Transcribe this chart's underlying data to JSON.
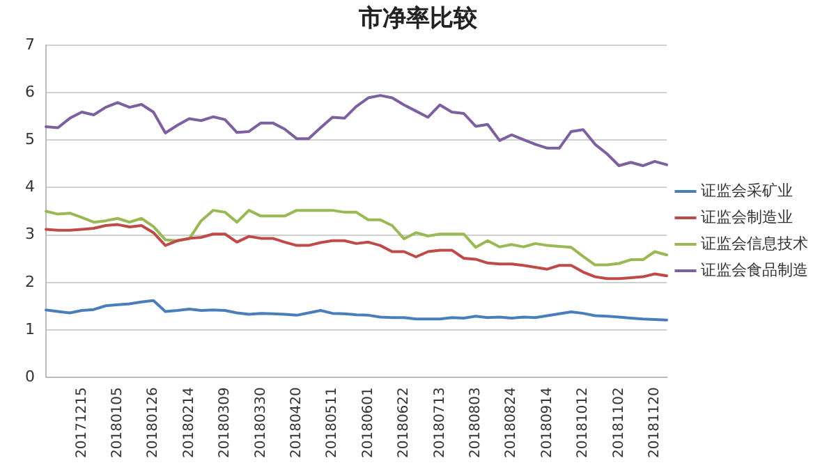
{
  "chart_data": {
    "type": "line",
    "title": "市净率比较",
    "categories": [
      null,
      null,
      null,
      "20171215",
      null,
      null,
      "20180105",
      null,
      null,
      "20180126",
      null,
      null,
      "20180214",
      null,
      null,
      "20180309",
      null,
      null,
      "20180330",
      null,
      null,
      "20180420",
      null,
      null,
      "20180511",
      null,
      null,
      "20180601",
      null,
      null,
      "20180622",
      null,
      null,
      "20180713",
      null,
      null,
      "20180803",
      null,
      null,
      "20180824",
      null,
      null,
      "20180914",
      null,
      null,
      "20181012",
      null,
      null,
      "20181102",
      null,
      null,
      "20181120",
      null
    ],
    "series": [
      {
        "name": "证监会采矿业",
        "color": "#4a7ebb",
        "values": [
          1.42,
          1.39,
          1.36,
          1.41,
          1.43,
          1.51,
          1.53,
          1.55,
          1.59,
          1.62,
          1.39,
          1.41,
          1.44,
          1.41,
          1.42,
          1.41,
          1.36,
          1.33,
          1.35,
          1.34,
          1.33,
          1.31,
          1.36,
          1.41,
          1.35,
          1.34,
          1.32,
          1.31,
          1.27,
          1.26,
          1.26,
          1.23,
          1.23,
          1.23,
          1.26,
          1.25,
          1.29,
          1.26,
          1.27,
          1.25,
          1.27,
          1.26,
          1.3,
          1.34,
          1.38,
          1.35,
          1.3,
          1.29,
          1.27,
          1.25,
          1.23,
          1.22,
          1.21
        ]
      },
      {
        "name": "证监会制造业",
        "color": "#be4b48",
        "values": [
          3.12,
          3.1,
          3.1,
          3.12,
          3.14,
          3.2,
          3.22,
          3.17,
          3.2,
          3.05,
          2.78,
          2.88,
          2.93,
          2.95,
          3.02,
          3.02,
          2.85,
          2.97,
          2.93,
          2.93,
          2.85,
          2.78,
          2.78,
          2.84,
          2.88,
          2.88,
          2.82,
          2.85,
          2.78,
          2.65,
          2.65,
          2.54,
          2.65,
          2.68,
          2.68,
          2.51,
          2.49,
          2.41,
          2.39,
          2.39,
          2.36,
          2.32,
          2.28,
          2.36,
          2.36,
          2.22,
          2.12,
          2.08,
          2.08,
          2.1,
          2.12,
          2.18,
          2.14
        ]
      },
      {
        "name": "证监会信息技术",
        "color": "#98b954",
        "values": [
          3.5,
          3.44,
          3.46,
          3.37,
          3.27,
          3.3,
          3.35,
          3.27,
          3.35,
          3.18,
          2.9,
          2.88,
          2.92,
          3.3,
          3.52,
          3.48,
          3.27,
          3.52,
          3.4,
          3.4,
          3.4,
          3.52,
          3.52,
          3.52,
          3.52,
          3.48,
          3.48,
          3.32,
          3.32,
          3.2,
          2.92,
          3.05,
          2.98,
          3.02,
          3.02,
          3.02,
          2.74,
          2.88,
          2.75,
          2.8,
          2.75,
          2.82,
          2.78,
          2.76,
          2.74,
          2.55,
          2.37,
          2.37,
          2.4,
          2.48,
          2.48,
          2.65,
          2.58
        ]
      },
      {
        "name": "证监会食品制造",
        "color": "#7d60a0",
        "values": [
          5.28,
          5.26,
          5.46,
          5.59,
          5.53,
          5.69,
          5.79,
          5.69,
          5.75,
          5.59,
          5.15,
          5.31,
          5.45,
          5.41,
          5.49,
          5.43,
          5.16,
          5.18,
          5.36,
          5.36,
          5.23,
          5.03,
          5.03,
          5.26,
          5.48,
          5.46,
          5.71,
          5.89,
          5.94,
          5.89,
          5.74,
          5.61,
          5.48,
          5.74,
          5.59,
          5.56,
          5.29,
          5.33,
          4.99,
          5.11,
          5.01,
          4.91,
          4.83,
          4.83,
          5.18,
          5.22,
          4.91,
          4.71,
          4.46,
          4.53,
          4.46,
          4.55,
          4.48
        ]
      }
    ],
    "ylim": [
      0,
      7
    ],
    "yticks": [
      0,
      1,
      2,
      3,
      4,
      5,
      6,
      7
    ],
    "grid": "y",
    "legend": "right",
    "marker": "none",
    "line_style": "solid"
  }
}
